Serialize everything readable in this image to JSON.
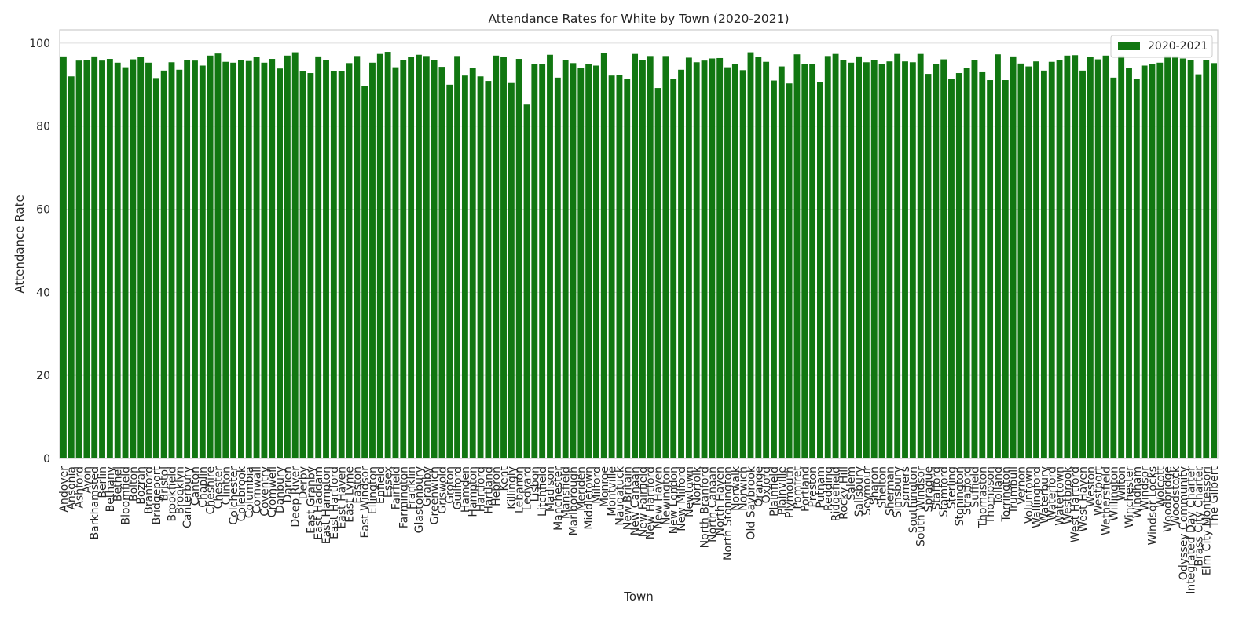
{
  "chart_data": {
    "type": "bar",
    "title": "Attendance Rates for White by Town (2020-2021)",
    "xlabel": "Town",
    "ylabel": "Attendance Rate",
    "ylim": [
      0,
      103.2
    ],
    "yticks": [
      0,
      20,
      40,
      60,
      80,
      100
    ],
    "grid": "horizontal",
    "legend_position": "top-right",
    "bar_color": "#117711",
    "categories": [
      "Andover",
      "Ansonia",
      "Ashford",
      "Avon",
      "Barkhamsted",
      "Berlin",
      "Bethany",
      "Bethel",
      "Bloomfield",
      "Bolton",
      "Bozrah",
      "Branford",
      "Bridgeport",
      "Bristol",
      "Brookfield",
      "Brooklyn",
      "Canterbury",
      "Canton",
      "Chaplin",
      "Cheshire",
      "Chester",
      "Clinton",
      "Colchester",
      "Colebrook",
      "Columbia",
      "Cornwall",
      "Coventry",
      "Cromwell",
      "Danbury",
      "Darien",
      "Deep River",
      "Derby",
      "East Granby",
      "East Haddam",
      "East Hampton",
      "East Hartford",
      "East Haven",
      "East Lyme",
      "Easton",
      "East Windsor",
      "Ellington",
      "Enfield",
      "Essex",
      "Fairfield",
      "Farmington",
      "Franklin",
      "Glastonbury",
      "Granby",
      "Greenwich",
      "Griswold",
      "Groton",
      "Guilford",
      "Hamden",
      "Hampton",
      "Hartford",
      "Hartland",
      "Hebron",
      "Kent",
      "Killingly",
      "Lebanon",
      "Ledyard",
      "Lisbon",
      "Litchfield",
      "Madison",
      "Manchester",
      "Mansfield",
      "Marlborough",
      "Meriden",
      "Middletown",
      "Milford",
      "Monroe",
      "Montville",
      "Naugatuck",
      "New Britain",
      "New Canaan",
      "New Fairfield",
      "New Hartford",
      "New Haven",
      "Newington",
      "New London",
      "New Milford",
      "Newtown",
      "Norfolk",
      "North Branford",
      "North Canaan",
      "North Haven",
      "North Stonington",
      "Norwalk",
      "Norwich",
      "Old Saybrook",
      "Orange",
      "Oxford",
      "Plainfield",
      "Plainville",
      "Plymouth",
      "Pomfret",
      "Portland",
      "Preston",
      "Putnam",
      "Redding",
      "Ridgefield",
      "Rocky Hill",
      "Salem",
      "Salisbury",
      "Seymour",
      "Sharon",
      "Shelton",
      "Sherman",
      "Simsbury",
      "Somers",
      "Southington",
      "South Windsor",
      "Sprague",
      "Stafford",
      "Stamford",
      "Sterling",
      "Stonington",
      "Stratford",
      "Suffield",
      "Thomaston",
      "Thompson",
      "Tolland",
      "Torrington",
      "Trumbull",
      "Vernon",
      "Voluntown",
      "Wallingford",
      "Waterbury",
      "Waterford",
      "Watertown",
      "Westbrook",
      "West Hartford",
      "West Haven",
      "Weston",
      "Westport",
      "Wethersfield",
      "Willington",
      "Wilton",
      "Winchester",
      "Windham",
      "Windsor",
      "Windsor Locks",
      "Wolcott",
      "Woodbridge",
      "Woodstock",
      "Odyssey Community",
      "Integrated Day Charter",
      "Brass City Charter",
      "Elm City Montessori",
      "The Gilbert"
    ],
    "series": [
      {
        "name": "2020-2021",
        "values": [
          96.8,
          92.0,
          95.8,
          96.0,
          96.8,
          95.8,
          96.2,
          95.3,
          94.2,
          96.1,
          96.6,
          95.3,
          91.6,
          93.4,
          95.4,
          93.6,
          96.0,
          95.8,
          94.6,
          97.0,
          97.5,
          95.5,
          95.3,
          96.0,
          95.7,
          96.6,
          95.3,
          96.2,
          93.9,
          97.0,
          97.8,
          93.3,
          92.8,
          96.8,
          95.9,
          93.3,
          93.3,
          95.2,
          96.9,
          89.6,
          95.3,
          97.4,
          97.9,
          94.2,
          96.0,
          96.7,
          97.2,
          96.9,
          95.9,
          94.3,
          90.0,
          96.9,
          92.2,
          94.0,
          92.0,
          90.9,
          97.0,
          96.6,
          90.4,
          96.2,
          85.2,
          95.0,
          95.0,
          97.2,
          91.7,
          96.0,
          95.2,
          94.0,
          94.9,
          94.6,
          97.7,
          92.2,
          92.3,
          91.3,
          97.4,
          95.9,
          96.9,
          89.2,
          96.9,
          91.3,
          93.6,
          96.5,
          95.4,
          95.8,
          96.3,
          96.4,
          94.2,
          95.0,
          93.5,
          97.8,
          96.6,
          95.5,
          91.0,
          94.4,
          90.3,
          97.3,
          95.0,
          95.0,
          90.6,
          96.9,
          97.4,
          96.0,
          95.3,
          96.8,
          95.4,
          96.0,
          95.0,
          95.6,
          97.4,
          95.6,
          95.4,
          97.4,
          92.6,
          95.0,
          96.1,
          91.3,
          92.8,
          94.1,
          95.9,
          93.0,
          91.1,
          97.3,
          91.1,
          96.8,
          95.1,
          94.4,
          95.6,
          93.4,
          95.5,
          95.9,
          97.0,
          97.1,
          93.4,
          96.6,
          96.1,
          97.0,
          91.7,
          97.0,
          94.0,
          91.3,
          94.6,
          94.9,
          95.3,
          97.0,
          96.9,
          96.3,
          95.9,
          92.5,
          96.0,
          95.2
        ]
      }
    ]
  }
}
